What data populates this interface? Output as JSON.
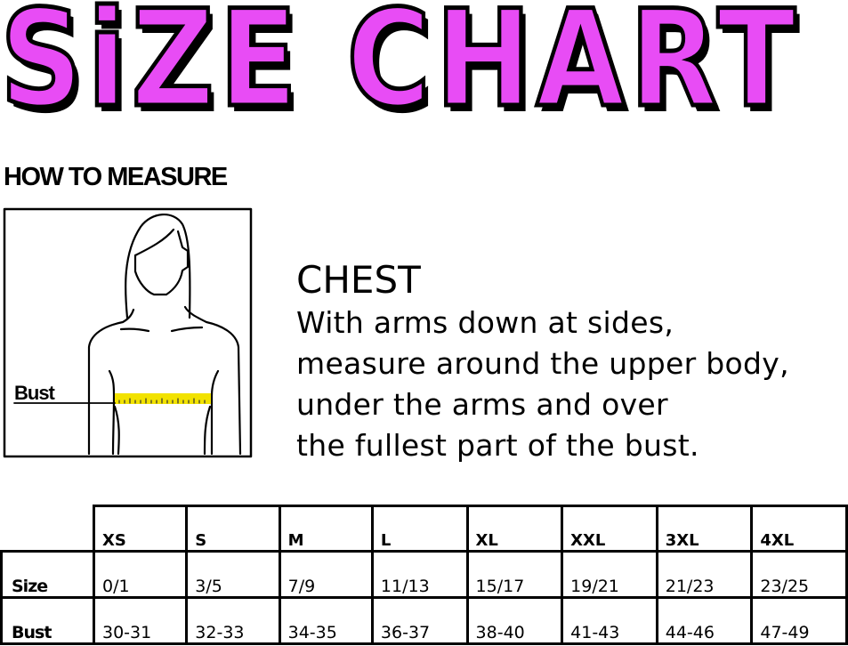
{
  "title": "SiZE CHART",
  "title_color": "#e84cf5",
  "how_to_measure": "HOW TO MEASURE",
  "figure": {
    "bust_label": "Bust",
    "tape_color": "#f2e200"
  },
  "chest": {
    "heading": "CHEST",
    "lines": [
      "With arms down at sides,",
      "measure around the upper body,",
      "under the arms and over",
      "the fullest part of the bust."
    ]
  },
  "table": {
    "sizes": [
      "XS",
      "S",
      "M",
      "L",
      "XL",
      "XXL",
      "3XL",
      "4XL"
    ],
    "rows": [
      {
        "label": "Size",
        "values": [
          "0/1",
          "3/5",
          "7/9",
          "11/13",
          "15/17",
          "19/21",
          "21/23",
          "23/25"
        ]
      },
      {
        "label": "Bust",
        "values": [
          "30-31",
          "32-33",
          "34-35",
          "36-37",
          "38-40",
          "41-43",
          "44-46",
          "47-49"
        ]
      }
    ]
  }
}
